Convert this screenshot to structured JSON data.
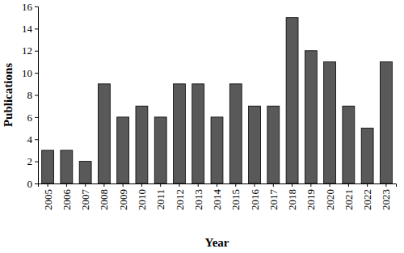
{
  "chart_data": {
    "type": "bar",
    "x_label": "Year",
    "y_label": "Publications",
    "categories": [
      "2005",
      "2006",
      "2007",
      "2008",
      "2009",
      "2010",
      "2011",
      "2012",
      "2013",
      "2014",
      "2015",
      "2016",
      "2017",
      "2018",
      "2019",
      "2020",
      "2021",
      "2022",
      "2023"
    ],
    "values": [
      3,
      3,
      2,
      9,
      6,
      7,
      6,
      9,
      9,
      6,
      9,
      7,
      7,
      15,
      12,
      11,
      7,
      5,
      11
    ],
    "color": "#595959",
    "ylim": [
      0,
      16
    ],
    "yticks": [
      0,
      2,
      4,
      6,
      8,
      10,
      12,
      14,
      16
    ],
    "grid": false
  }
}
